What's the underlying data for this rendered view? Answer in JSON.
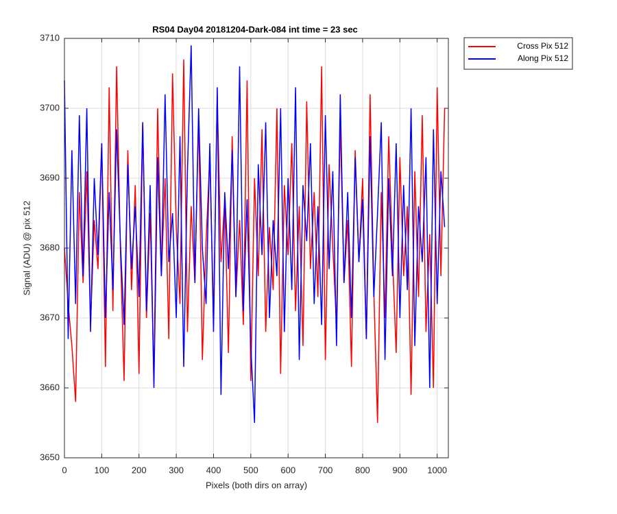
{
  "chart_data": {
    "type": "line",
    "title": "RS04 Day04 20181204-Dark-084 int time = 23 sec",
    "xlabel": "Pixels (both dirs on array)",
    "ylabel": "Signal (ADU) @ pix 512",
    "x": [
      0,
      10,
      20,
      30,
      40,
      50,
      60,
      70,
      80,
      90,
      100,
      110,
      120,
      130,
      140,
      150,
      160,
      170,
      180,
      190,
      200,
      210,
      220,
      230,
      240,
      250,
      260,
      270,
      280,
      290,
      300,
      310,
      320,
      330,
      340,
      350,
      360,
      370,
      380,
      390,
      400,
      410,
      420,
      430,
      440,
      450,
      460,
      470,
      480,
      490,
      500,
      510,
      520,
      530,
      540,
      550,
      560,
      570,
      580,
      590,
      600,
      610,
      620,
      630,
      640,
      650,
      660,
      670,
      680,
      690,
      700,
      710,
      720,
      730,
      740,
      750,
      760,
      770,
      780,
      790,
      800,
      810,
      820,
      830,
      840,
      850,
      860,
      870,
      880,
      890,
      900,
      910,
      920,
      930,
      940,
      950,
      960,
      970,
      980,
      990,
      1000,
      1010,
      1020
    ],
    "series": [
      {
        "name": "Cross Pix 512",
        "color": "#ff0000",
        "values": [
          3680,
          3672,
          3666,
          3658,
          3688,
          3675,
          3691,
          3669,
          3684,
          3677,
          3695,
          3663,
          3703,
          3671,
          3706,
          3680,
          3661,
          3694,
          3674,
          3689,
          3662,
          3698,
          3670,
          3685,
          3661,
          3700,
          3676,
          3690,
          3667,
          3705,
          3683,
          3672,
          3707,
          3668,
          3686,
          3675,
          3699,
          3664,
          3681,
          3693,
          3670,
          3702,
          3678,
          3687,
          3665,
          3696,
          3673,
          3684,
          3669,
          3704,
          3661,
          3690,
          3676,
          3697,
          3668,
          3683,
          3674,
          3700,
          3662,
          3689,
          3679,
          3695,
          3671,
          3686,
          3666,
          3701,
          3677,
          3688,
          3673,
          3706,
          3664,
          3692,
          3680,
          3669,
          3698,
          3675,
          3684,
          3663,
          3694,
          3678,
          3690,
          3667,
          3702,
          3674,
          3655,
          3688,
          3670,
          3696,
          3679,
          3665,
          3693,
          3676,
          3686,
          3659,
          3691,
          3673,
          3699,
          3668,
          3682,
          3660,
          3703,
          3676,
          3700
        ]
      },
      {
        "name": "Along Pix 512",
        "color": "#0000ff",
        "values": [
          3704,
          3667,
          3694,
          3672,
          3699,
          3676,
          3700,
          3668,
          3690,
          3679,
          3695,
          3670,
          3688,
          3674,
          3697,
          3681,
          3669,
          3692,
          3677,
          3686,
          3673,
          3698,
          3671,
          3689,
          3660,
          3693,
          3676,
          3702,
          3678,
          3685,
          3670,
          3696,
          3663,
          3691,
          3709,
          3675,
          3700,
          3680,
          3672,
          3695,
          3668,
          3703,
          3659,
          3688,
          3677,
          3694,
          3673,
          3706,
          3671,
          3687,
          3666,
          3655,
          3692,
          3679,
          3698,
          3670,
          3684,
          3676,
          3700,
          3668,
          3690,
          3674,
          3703,
          3664,
          3689,
          3681,
          3695,
          3672,
          3686,
          3669,
          3699,
          3677,
          3691,
          3666,
          3702,
          3675,
          3688,
          3670,
          3693,
          3678,
          3687,
          3667,
          3696,
          3673,
          3685,
          3698,
          3664,
          3690,
          3676,
          3695,
          3670,
          3689,
          3674,
          3700,
          3666,
          3686,
          3678,
          3693,
          3660,
          3697,
          3672,
          3691,
          3683
        ]
      }
    ],
    "xlim": [
      0,
      1030
    ],
    "ylim": [
      3650,
      3710
    ],
    "xticks": [
      0,
      100,
      200,
      300,
      400,
      500,
      600,
      700,
      800,
      900,
      1000
    ],
    "yticks": [
      3650,
      3660,
      3670,
      3680,
      3690,
      3700,
      3710
    ],
    "grid": true,
    "legend": "northeast-outside"
  }
}
